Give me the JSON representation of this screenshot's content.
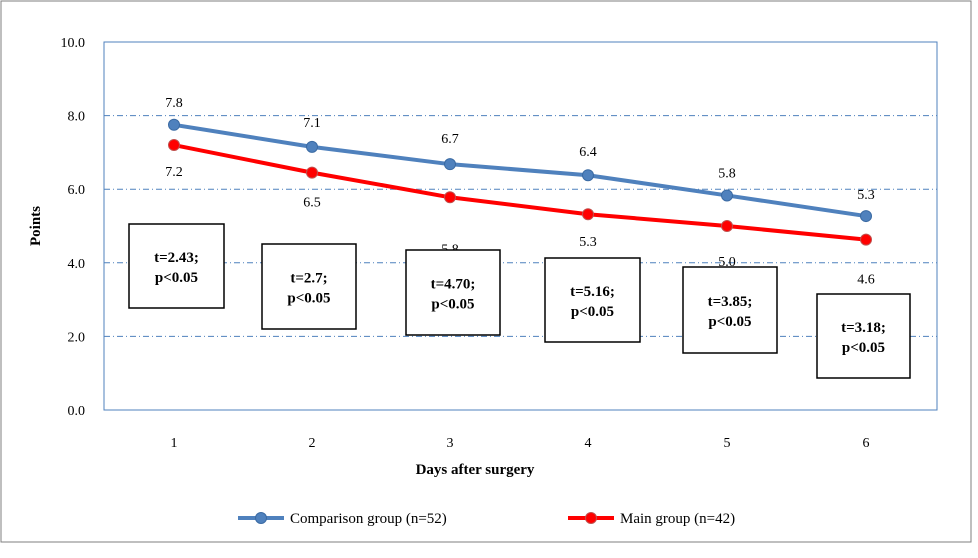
{
  "chart_data": {
    "type": "line",
    "title": "",
    "xlabel": "Days after surgery",
    "ylabel": "Points",
    "categories": [
      "1",
      "2",
      "3",
      "4",
      "5",
      "6"
    ],
    "ylim": [
      0,
      10
    ],
    "yticks": [
      "0.0",
      "2.0",
      "4.0",
      "6.0",
      "8.0",
      "10.0"
    ],
    "grid": "horizontal dash-dot",
    "legend_position": "bottom",
    "series": [
      {
        "name": "Comparison group (n=52)",
        "color": "#4f81bd",
        "values": [
          7.75,
          7.15,
          6.68,
          6.38,
          5.83,
          5.27
        ],
        "labels": [
          "7.8",
          "7.1",
          "6.7",
          "6.4",
          "5.8",
          "5.3"
        ]
      },
      {
        "name": "Main group (n=42)",
        "color": "#ff0000",
        "values": [
          7.2,
          6.45,
          5.78,
          5.32,
          5.0,
          4.63
        ],
        "labels": [
          "7.2",
          "6.5",
          "5.8",
          "5.3",
          "5.0",
          "4.6"
        ]
      }
    ],
    "annotations": [
      {
        "line1": "t=2.43;",
        "line2": "p<0.05"
      },
      {
        "line1": "t=2.7;",
        "line2": "p<0.05"
      },
      {
        "line1": "t=4.70;",
        "line2": "p<0.05"
      },
      {
        "line1": "t=5.16;",
        "line2": "p<0.05"
      },
      {
        "line1": "t=3.85;",
        "line2": "p<0.05"
      },
      {
        "line1": "t=3.18;",
        "line2": "p<0.05"
      }
    ]
  }
}
